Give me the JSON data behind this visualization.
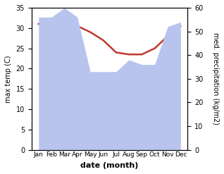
{
  "months": [
    "Jan",
    "Feb",
    "Mar",
    "Apr",
    "May",
    "Jun",
    "Jul",
    "Aug",
    "Sep",
    "Oct",
    "Nov",
    "Dec"
  ],
  "temperature": [
    31.0,
    31.0,
    31.0,
    30.5,
    29.0,
    27.0,
    24.0,
    23.5,
    23.5,
    25.0,
    28.0,
    30.5
  ],
  "precipitation": [
    56,
    56,
    60,
    56,
    33,
    33,
    33,
    38,
    36,
    36,
    52,
    54
  ],
  "temp_color": "#c0392b",
  "precip_color": "#b8c4ed",
  "temp_ylim": [
    0,
    35
  ],
  "precip_ylim": [
    0,
    60
  ],
  "temp_yticks": [
    0,
    5,
    10,
    15,
    20,
    25,
    30,
    35
  ],
  "precip_yticks": [
    0,
    10,
    20,
    30,
    40,
    50,
    60
  ],
  "xlabel": "date (month)",
  "ylabel_left": "max temp (C)",
  "ylabel_right": "med. precipitation (kg/m2)",
  "bg_color": "#ffffff"
}
